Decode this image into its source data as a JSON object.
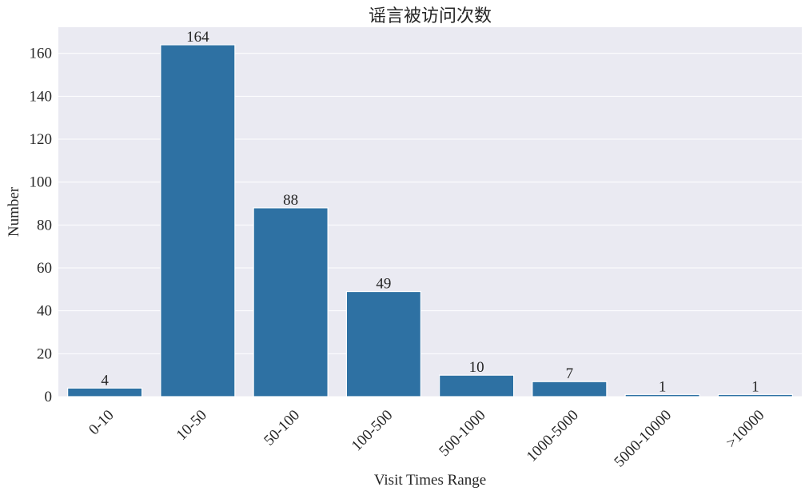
{
  "chart_data": {
    "type": "bar",
    "title": "谣言被访问次数",
    "xlabel": "Visit Times Range",
    "ylabel": "Number",
    "categories": [
      "0-10",
      "10-50",
      "50-100",
      "100-500",
      "500-1000",
      "1000-5000",
      "5000-10000",
      ">10000"
    ],
    "values": [
      4,
      164,
      88,
      49,
      10,
      7,
      1,
      1
    ],
    "data_labels": [
      "4",
      "164",
      "88",
      "49",
      "10",
      "7",
      "1",
      "1"
    ],
    "yticks": [
      0,
      20,
      40,
      60,
      80,
      100,
      120,
      140,
      160
    ],
    "ylim": [
      0,
      172.2
    ],
    "grid": true,
    "colors": {
      "bar": "#2e71a3",
      "plot_bg": "#eaeaf2",
      "grid": "#ffffff",
      "text": "#262626"
    }
  }
}
